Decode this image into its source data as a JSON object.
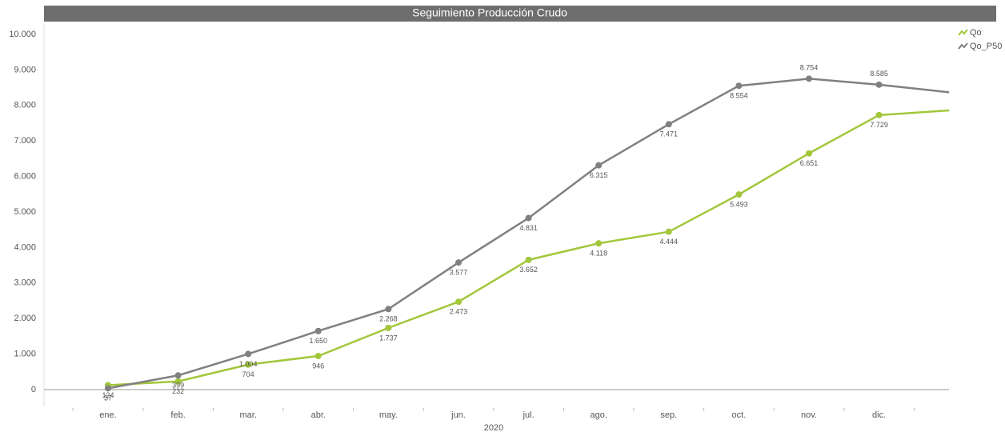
{
  "chart_data": {
    "type": "line",
    "title": "Seguimiento Producción Crudo",
    "x_label": "2020",
    "categories": [
      "ene.",
      "feb.",
      "mar.",
      "abr.",
      "may.",
      "jun.",
      "jul.",
      "ago.",
      "sep.",
      "oct.",
      "nov.",
      "dic.",
      null
    ],
    "series": [
      {
        "name": "Qo",
        "color": "#a2c73b",
        "values": [
          124,
          232,
          704,
          946,
          1737,
          2473,
          3652,
          4118,
          4444,
          5493,
          6651,
          7729,
          7860
        ],
        "value_labels": [
          "124",
          "232",
          "704",
          "946",
          "1.737",
          "2.473",
          "3.652",
          "4.118",
          "4.444",
          "5.493",
          "6.651",
          "7.729",
          null
        ]
      },
      {
        "name": "Qo_P50",
        "color": "#808080",
        "values": [
          37,
          399,
          1004,
          1650,
          2268,
          3577,
          4831,
          6315,
          7471,
          8554,
          8754,
          8585,
          8370
        ],
        "value_labels": [
          "37",
          "399",
          "1.004",
          "1.650",
          "2.268",
          "3.577",
          "4.831",
          "6.315",
          "7.471",
          "8.554",
          "8.754",
          "8.585",
          null
        ]
      }
    ],
    "ylim": [
      0,
      10000
    ],
    "yticks": [
      0,
      {
        "value": 1000,
        "label": "1.000"
      },
      {
        "value": 2000,
        "label": "2.000"
      },
      {
        "value": 3000,
        "label": "3.000"
      },
      {
        "value": 4000,
        "label": "4.000"
      },
      {
        "value": 5000,
        "label": "5.000"
      },
      {
        "value": 6000,
        "label": "6.000"
      },
      {
        "value": 7000,
        "label": "7.000"
      },
      {
        "value": 8000,
        "label": "8.000"
      },
      {
        "value": 9000,
        "label": "9.000"
      },
      {
        "value": 10000,
        "label": "10.000"
      }
    ],
    "legend": "top-right"
  }
}
